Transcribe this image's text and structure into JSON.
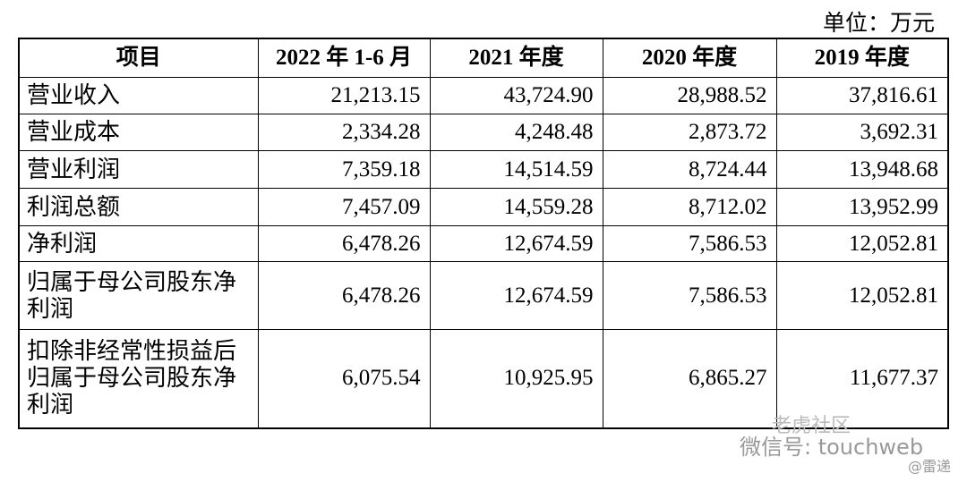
{
  "unit": "单位：万元",
  "table": {
    "header": [
      "项目",
      "2022 年 1-6 月",
      "2021 年度",
      "2020 年度",
      "2019 年度"
    ],
    "rows": [
      [
        "营业收入",
        "21,213.15",
        "43,724.90",
        "28,988.52",
        "37,816.61"
      ],
      [
        "营业成本",
        "2,334.28",
        "4,248.48",
        "2,873.72",
        "3,692.31"
      ],
      [
        "营业利润",
        "7,359.18",
        "14,514.59",
        "8,724.44",
        "13,948.68"
      ],
      [
        "利润总额",
        "7,457.09",
        "14,559.28",
        "8,712.02",
        "13,952.99"
      ],
      [
        "净利润",
        "6,478.26",
        "12,674.59",
        "7,586.53",
        "12,052.81"
      ],
      [
        "归属于母公司股东净利润",
        "6,478.26",
        "12,674.59",
        "7,586.53",
        "12,052.81"
      ],
      [
        "扣除非经常性损益后归属于母公司股东净利润",
        "6,075.54",
        "10,925.95",
        "6,865.27",
        "11,677.37"
      ]
    ]
  },
  "watermark": {
    "brand": "老虎社区",
    "account": "微信号: touchweb",
    "source": "@雷递"
  }
}
